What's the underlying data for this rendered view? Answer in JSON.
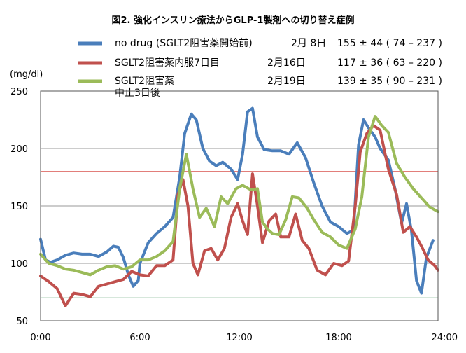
{
  "chart_data": {
    "type": "line",
    "title": "図2. 強化インスリン療法からGLP-1製剤への切り替え症例",
    "xlabel": "",
    "ylabel": "(mg/dl)",
    "xlim": [
      0,
      24
    ],
    "ylim": [
      50,
      250
    ],
    "x_ticks": [
      0,
      6,
      12,
      18,
      24
    ],
    "x_tick_labels": [
      "0:00",
      "6:00",
      "12:00",
      "18:00",
      "24:00"
    ],
    "y_ticks": [
      50,
      100,
      150,
      200,
      250
    ],
    "y_tick_labels": [
      "50",
      "100",
      "150",
      "200",
      "250"
    ],
    "grid": "horizontal",
    "reference_lines": [
      {
        "value": 180,
        "color": "#d9534f"
      },
      {
        "value": 70,
        "color": "#5aa070"
      }
    ],
    "legend_position": "top",
    "series": [
      {
        "name": "no drug (SGLT2阻害薬開始前)",
        "date": "2月 8日",
        "stats_mean": "155",
        "stats_sd": "44",
        "stats_range": "( 74 – 237 )",
        "color": "#4a7ebb",
        "points": [
          [
            0,
            121
          ],
          [
            0.3,
            103
          ],
          [
            0.6,
            101
          ],
          [
            1,
            103
          ],
          [
            1.5,
            107
          ],
          [
            2,
            109
          ],
          [
            2.5,
            108
          ],
          [
            3,
            108
          ],
          [
            3.5,
            106
          ],
          [
            4,
            110
          ],
          [
            4.4,
            115
          ],
          [
            4.7,
            114
          ],
          [
            5,
            105
          ],
          [
            5.3,
            90
          ],
          [
            5.6,
            80
          ],
          [
            5.9,
            85
          ],
          [
            6,
            100
          ],
          [
            6.5,
            118
          ],
          [
            7,
            126
          ],
          [
            7.5,
            132
          ],
          [
            8,
            140
          ],
          [
            8.4,
            175
          ],
          [
            8.7,
            213
          ],
          [
            9.1,
            230
          ],
          [
            9.4,
            225
          ],
          [
            9.8,
            200
          ],
          [
            10.2,
            189
          ],
          [
            10.6,
            185
          ],
          [
            11,
            188
          ],
          [
            11.5,
            182
          ],
          [
            11.9,
            173
          ],
          [
            12.2,
            195
          ],
          [
            12.5,
            232
          ],
          [
            12.8,
            235
          ],
          [
            13.1,
            210
          ],
          [
            13.5,
            199
          ],
          [
            14,
            198
          ],
          [
            14.5,
            198
          ],
          [
            15,
            195
          ],
          [
            15.5,
            205
          ],
          [
            16,
            192
          ],
          [
            16.5,
            170
          ],
          [
            17,
            150
          ],
          [
            17.5,
            136
          ],
          [
            18,
            132
          ],
          [
            18.5,
            126
          ],
          [
            18.9,
            129
          ],
          [
            19.2,
            203
          ],
          [
            19.5,
            225
          ],
          [
            19.8,
            218
          ],
          [
            20.2,
            210
          ],
          [
            20.5,
            200
          ],
          [
            21,
            190
          ],
          [
            21.4,
            165
          ],
          [
            21.8,
            135
          ],
          [
            22.1,
            152
          ],
          [
            22.4,
            128
          ],
          [
            22.7,
            85
          ],
          [
            23,
            74
          ],
          [
            23.3,
            105
          ],
          [
            23.7,
            120
          ]
        ]
      },
      {
        "name": "SGLT2阻害薬内服7日目",
        "date": "2月16日",
        "stats_mean": "117",
        "stats_sd": "36",
        "stats_range": "( 63 – 220 )",
        "color": "#c0504d",
        "points": [
          [
            0,
            89
          ],
          [
            0.5,
            84
          ],
          [
            1,
            78
          ],
          [
            1.5,
            63
          ],
          [
            2,
            74
          ],
          [
            2.5,
            73
          ],
          [
            3,
            71
          ],
          [
            3.5,
            80
          ],
          [
            4,
            82
          ],
          [
            4.5,
            84
          ],
          [
            5,
            86
          ],
          [
            5.5,
            93
          ],
          [
            6,
            90
          ],
          [
            6.5,
            89
          ],
          [
            7,
            98
          ],
          [
            7.5,
            98
          ],
          [
            8,
            103
          ],
          [
            8.3,
            160
          ],
          [
            8.6,
            173
          ],
          [
            8.9,
            150
          ],
          [
            9.2,
            100
          ],
          [
            9.5,
            90
          ],
          [
            9.9,
            111
          ],
          [
            10.3,
            113
          ],
          [
            10.7,
            103
          ],
          [
            11.1,
            113
          ],
          [
            11.5,
            140
          ],
          [
            11.9,
            152
          ],
          [
            12.2,
            137
          ],
          [
            12.5,
            125
          ],
          [
            12.8,
            178
          ],
          [
            13.1,
            150
          ],
          [
            13.4,
            118
          ],
          [
            13.8,
            137
          ],
          [
            14.2,
            143
          ],
          [
            14.5,
            123
          ],
          [
            15,
            123
          ],
          [
            15.4,
            143
          ],
          [
            15.8,
            120
          ],
          [
            16.2,
            113
          ],
          [
            16.7,
            94
          ],
          [
            17.2,
            90
          ],
          [
            17.7,
            100
          ],
          [
            18.2,
            98
          ],
          [
            18.6,
            102
          ],
          [
            19,
            150
          ],
          [
            19.3,
            197
          ],
          [
            19.7,
            213
          ],
          [
            20.1,
            220
          ],
          [
            20.5,
            216
          ],
          [
            21,
            182
          ],
          [
            21.5,
            160
          ],
          [
            21.9,
            127
          ],
          [
            22.3,
            132
          ],
          [
            22.7,
            123
          ],
          [
            23,
            115
          ],
          [
            23.4,
            103
          ],
          [
            23.8,
            98
          ],
          [
            24,
            94
          ]
        ]
      },
      {
        "name": "SGLT2阻害薬\n中止3日後",
        "date": "2月19日",
        "stats_mean": "139",
        "stats_sd": "35",
        "stats_range": "( 90 – 231 )",
        "color": "#9bbb59",
        "points": [
          [
            0,
            108
          ],
          [
            0.5,
            100
          ],
          [
            1,
            98
          ],
          [
            1.5,
            95
          ],
          [
            2,
            94
          ],
          [
            2.5,
            92
          ],
          [
            3,
            90
          ],
          [
            3.5,
            94
          ],
          [
            4,
            97
          ],
          [
            4.5,
            98
          ],
          [
            5,
            95
          ],
          [
            5.5,
            97
          ],
          [
            6,
            103
          ],
          [
            6.5,
            103
          ],
          [
            7,
            106
          ],
          [
            7.5,
            111
          ],
          [
            8,
            119
          ],
          [
            8.4,
            165
          ],
          [
            8.8,
            195
          ],
          [
            9.2,
            165
          ],
          [
            9.6,
            140
          ],
          [
            10,
            148
          ],
          [
            10.5,
            132
          ],
          [
            10.9,
            158
          ],
          [
            11.3,
            152
          ],
          [
            11.8,
            165
          ],
          [
            12.2,
            168
          ],
          [
            12.7,
            164
          ],
          [
            13.1,
            165
          ],
          [
            13.4,
            136
          ],
          [
            13.7,
            130
          ],
          [
            14,
            126
          ],
          [
            14.4,
            125
          ],
          [
            14.8,
            138
          ],
          [
            15.2,
            158
          ],
          [
            15.6,
            157
          ],
          [
            16.1,
            148
          ],
          [
            16.5,
            138
          ],
          [
            17,
            127
          ],
          [
            17.5,
            123
          ],
          [
            18,
            116
          ],
          [
            18.5,
            113
          ],
          [
            19,
            130
          ],
          [
            19.4,
            158
          ],
          [
            19.8,
            210
          ],
          [
            20.2,
            228
          ],
          [
            20.6,
            220
          ],
          [
            21,
            214
          ],
          [
            21.5,
            187
          ],
          [
            22,
            175
          ],
          [
            22.5,
            165
          ],
          [
            23,
            157
          ],
          [
            23.5,
            149
          ],
          [
            24,
            145
          ]
        ]
      }
    ]
  }
}
